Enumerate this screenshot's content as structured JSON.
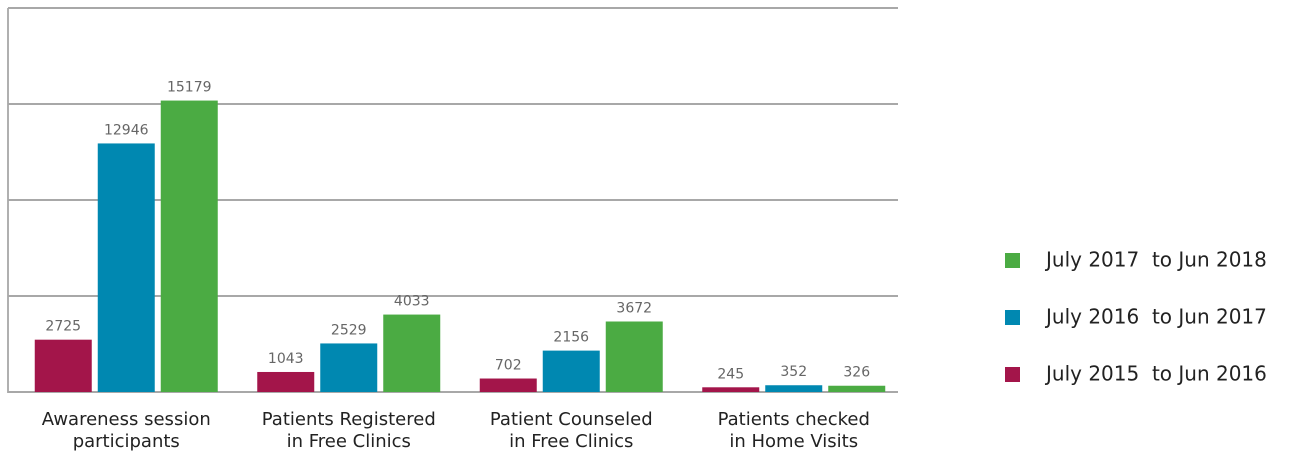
{
  "chart_data": {
    "type": "bar",
    "categories": [
      [
        "Awareness session",
        "participants"
      ],
      [
        "Patients Registered",
        "in Free Clinics"
      ],
      [
        "Patient Counseled",
        "in Free Clinics"
      ],
      [
        "Patients checked",
        "in Home Visits"
      ]
    ],
    "series": [
      {
        "name": "July 2015  to Jun 2016",
        "color": "#a3154a",
        "values": [
          2725,
          1043,
          702,
          245
        ]
      },
      {
        "name": "July 2016  to Jun 2017",
        "color": "#0088b1",
        "values": [
          12946,
          2529,
          2156,
          352
        ]
      },
      {
        "name": "July 2017  to Jun 2018",
        "color": "#4bab43",
        "values": [
          15179,
          4033,
          3672,
          326
        ]
      }
    ],
    "ylim": [
      0,
      20000
    ],
    "yticks": [
      0,
      5000,
      10000,
      15000,
      20000
    ],
    "grid": true,
    "legend": "right"
  }
}
